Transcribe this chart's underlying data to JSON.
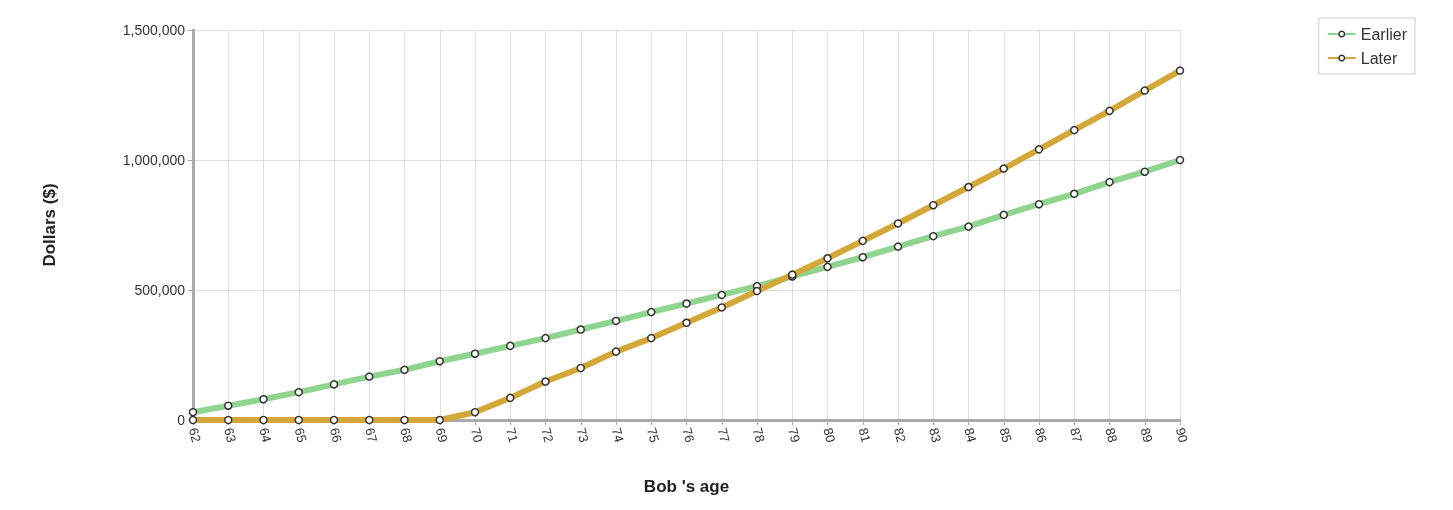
{
  "chart_data": {
    "type": "line",
    "xlabel": "Bob 's age",
    "ylabel": "Dollars ($)",
    "categories": [
      "62",
      "63",
      "64",
      "65",
      "66",
      "67",
      "68",
      "69",
      "70",
      "71",
      "72",
      "73",
      "74",
      "75",
      "76",
      "77",
      "78",
      "79",
      "80",
      "81",
      "82",
      "83",
      "84",
      "85",
      "86",
      "87",
      "88",
      "89",
      "90"
    ],
    "series": [
      {
        "name": "Earlier",
        "color": "#8fd48f",
        "values": [
          30000,
          55000,
          80000,
          107000,
          137000,
          167000,
          193000,
          226000,
          255000,
          285000,
          315000,
          348000,
          381000,
          415000,
          448000,
          481000,
          515000,
          552000,
          589000,
          626000,
          667000,
          707000,
          744000,
          789000,
          830000,
          870000,
          915000,
          955000,
          1000000
        ]
      },
      {
        "name": "Later",
        "color": "#d4a838",
        "values": [
          0,
          0,
          0,
          0,
          0,
          0,
          0,
          0,
          30000,
          85000,
          148000,
          200000,
          263000,
          315000,
          374000,
          433000,
          496000,
          559000,
          622000,
          689000,
          756000,
          826000,
          896000,
          967000,
          1041000,
          1115000,
          1189000,
          1267000,
          1344000
        ]
      }
    ],
    "ylim": [
      0,
      1500000
    ],
    "yticks": [
      0,
      {
        "value": 500000,
        "label": "500,000"
      },
      {
        "value": 1000000,
        "label": "1,000,000"
      },
      {
        "value": 1500000,
        "label": "1,500,000"
      }
    ],
    "grid": true,
    "legend": "top right",
    "marker": "circle",
    "line_style": "solid"
  }
}
